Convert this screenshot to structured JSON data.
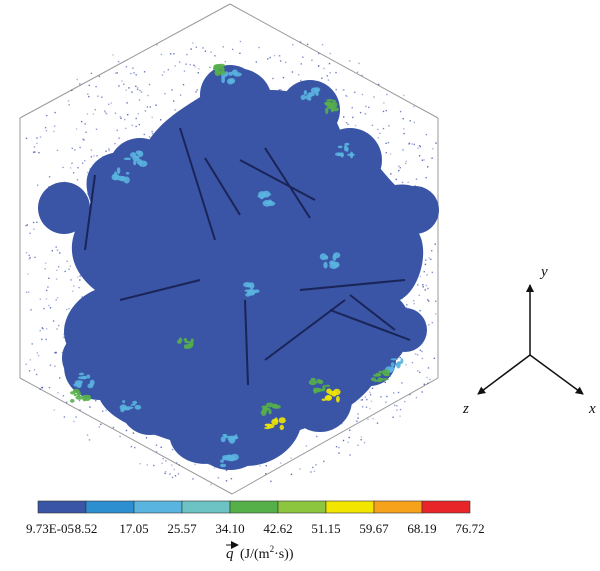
{
  "colorbar": {
    "colors": [
      "#3a55a5",
      "#2e8fd0",
      "#5ab4e0",
      "#6dc3c3",
      "#56b04a",
      "#8cc63f",
      "#f2e600",
      "#f7a21b",
      "#e8262a"
    ],
    "tick_labels": [
      "9.73E-05",
      "8.52",
      "17.05",
      "25.57",
      "34.10",
      "42.62",
      "51.15",
      "59.67",
      "68.19",
      "76.72"
    ],
    "quantity_symbol": "q",
    "unit_prefix": "(J/(m",
    "unit_sup": "2",
    "unit_suffix": "·s))"
  },
  "axes": {
    "x_label": "x",
    "y_label": "y",
    "z_label": "z"
  },
  "colors": {
    "body": "#3a55a5",
    "particles": "#3b4fa8",
    "frame": "#9a9a9a",
    "hot_cyan": "#5ab4e0",
    "hot_green": "#56b04a",
    "hot_yellow": "#f2e600"
  }
}
